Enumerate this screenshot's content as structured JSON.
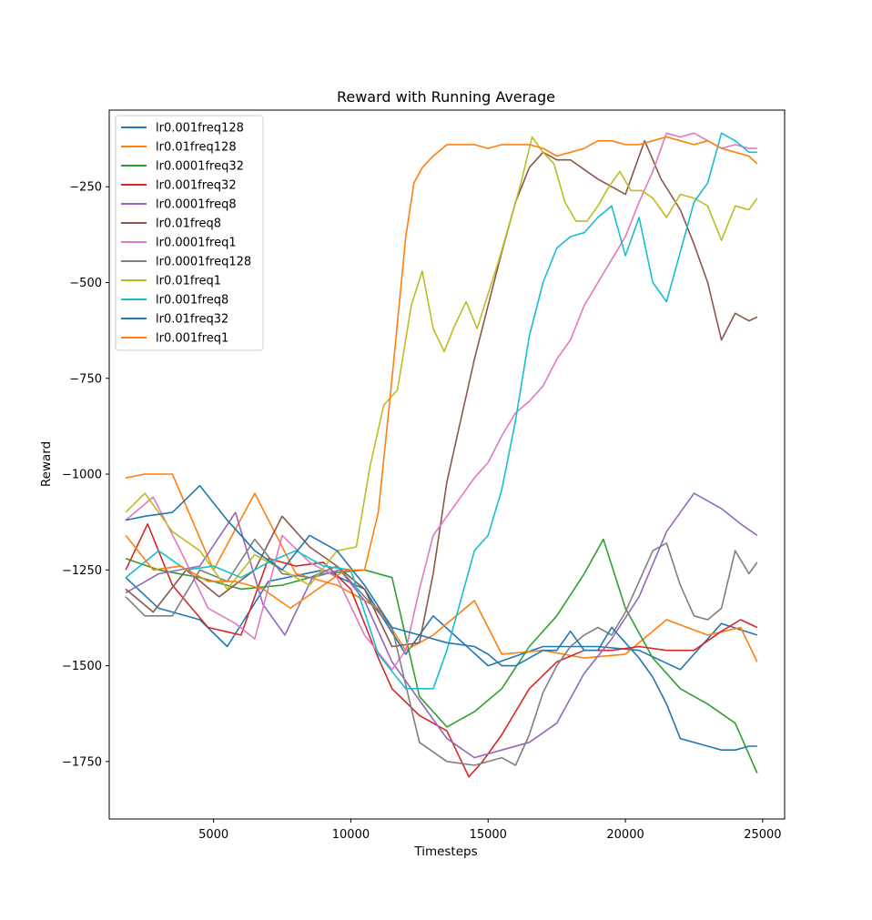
{
  "chart_data": {
    "type": "line",
    "title": "Reward with Running Average",
    "xlabel": "Timesteps",
    "ylabel": "Reward",
    "xlim": [
      1200,
      25800
    ],
    "ylim": [
      -1900,
      -50
    ],
    "xticks": [
      5000,
      10000,
      15000,
      20000,
      25000
    ],
    "xtick_labels": [
      "5000",
      "10000",
      "15000",
      "20000",
      "25000"
    ],
    "yticks": [
      -1750,
      -1500,
      -1250,
      -1000,
      -750,
      -500,
      -250
    ],
    "ytick_labels": [
      "−1750",
      "−1500",
      "−1250",
      "−1000",
      "−750",
      "−500",
      "−250"
    ],
    "grid": false,
    "legend_position": "upper-left",
    "series": [
      {
        "name": "lr0.001freq128",
        "color": "#1f77b4",
        "x": [
          1800,
          3000,
          4500,
          5500,
          7000,
          9000,
          10500,
          12000,
          13000,
          15000,
          17000,
          19000,
          20500,
          22000,
          23500,
          24800
        ],
        "y": [
          -1270,
          -1350,
          -1380,
          -1450,
          -1280,
          -1250,
          -1300,
          -1470,
          -1370,
          -1500,
          -1450,
          -1450,
          -1460,
          -1510,
          -1390,
          -1420
        ]
      },
      {
        "name": "lr0.01freq128",
        "color": "#ff7f0e",
        "x": [
          1800,
          2500,
          3500,
          5000,
          6500,
          8000,
          9500,
          11000,
          12000,
          13000,
          14500,
          15500,
          17000,
          18500,
          20000,
          21500,
          23000,
          24200,
          24800
        ],
        "y": [
          -1010,
          -1000,
          -1000,
          -1250,
          -1050,
          -1260,
          -1290,
          -1350,
          -1460,
          -1420,
          -1330,
          -1470,
          -1460,
          -1480,
          -1470,
          -1380,
          -1420,
          -1400,
          -1490
        ]
      },
      {
        "name": "lr0.0001freq32",
        "color": "#2ca02c",
        "x": [
          1800,
          3000,
          4500,
          6000,
          7500,
          9000,
          10500,
          11500,
          12500,
          13500,
          14500,
          15500,
          16500,
          17500,
          18500,
          19200,
          20000,
          21000,
          22000,
          23000,
          24000,
          24800
        ],
        "y": [
          -1220,
          -1250,
          -1270,
          -1300,
          -1290,
          -1260,
          -1250,
          -1270,
          -1580,
          -1660,
          -1620,
          -1560,
          -1450,
          -1370,
          -1260,
          -1170,
          -1350,
          -1480,
          -1560,
          -1600,
          -1650,
          -1780
        ]
      },
      {
        "name": "lr0.001freq32",
        "color": "#d62728",
        "x": [
          1800,
          2600,
          3500,
          4800,
          6000,
          7000,
          8000,
          9000,
          10000,
          11000,
          11500,
          12500,
          13500,
          14300,
          14800,
          15500,
          16500,
          17500,
          18500,
          19500,
          20500,
          21500,
          22500,
          23500,
          24200,
          24800
        ],
        "y": [
          -1250,
          -1130,
          -1290,
          -1400,
          -1420,
          -1220,
          -1240,
          -1230,
          -1300,
          -1480,
          -1560,
          -1630,
          -1670,
          -1790,
          -1750,
          -1680,
          -1560,
          -1490,
          -1460,
          -1460,
          -1450,
          -1460,
          -1460,
          -1410,
          -1380,
          -1400
        ]
      },
      {
        "name": "lr0.0001freq8",
        "color": "#9467bd",
        "x": [
          1800,
          3000,
          4500,
          5800,
          6800,
          7600,
          8600,
          9600,
          10500,
          11500,
          12500,
          13500,
          14500,
          15500,
          16500,
          17500,
          18500,
          19500,
          20500,
          21500,
          22500,
          23500,
          24200,
          24800
        ],
        "y": [
          -1310,
          -1260,
          -1240,
          -1100,
          -1340,
          -1420,
          -1270,
          -1250,
          -1330,
          -1490,
          -1590,
          -1690,
          -1740,
          -1720,
          -1700,
          -1650,
          -1520,
          -1430,
          -1320,
          -1150,
          -1050,
          -1090,
          -1130,
          -1160
        ]
      },
      {
        "name": "lr0.01freq8",
        "color": "#8c564b",
        "x": [
          1800,
          2800,
          4000,
          5200,
          6500,
          7500,
          8500,
          9500,
          10500,
          11500,
          12500,
          13000,
          13500,
          14000,
          14500,
          15000,
          15500,
          16000,
          16500,
          17000,
          17500,
          18000,
          19000,
          20000,
          20700,
          21300,
          22000,
          22500,
          23000,
          23500,
          24000,
          24500,
          24800
        ],
        "y": [
          -1300,
          -1360,
          -1250,
          -1320,
          -1250,
          -1110,
          -1190,
          -1240,
          -1300,
          -1450,
          -1440,
          -1260,
          -1020,
          -860,
          -700,
          -560,
          -420,
          -290,
          -200,
          -160,
          -180,
          -180,
          -230,
          -270,
          -130,
          -230,
          -310,
          -400,
          -500,
          -650,
          -580,
          -600,
          -590
        ]
      },
      {
        "name": "lr0.0001freq1",
        "color": "#e377c2",
        "x": [
          1800,
          2800,
          3800,
          4800,
          5800,
          6500,
          7500,
          8500,
          9500,
          10500,
          11500,
          12000,
          12500,
          13000,
          13500,
          14000,
          14500,
          15000,
          15500,
          16000,
          16500,
          17000,
          17500,
          18000,
          18500,
          19000,
          19500,
          20000,
          20500,
          21000,
          21500,
          22000,
          22500,
          23000,
          23500,
          24000,
          24500,
          24800
        ],
        "y": [
          -1120,
          -1060,
          -1200,
          -1350,
          -1390,
          -1430,
          -1160,
          -1230,
          -1270,
          -1420,
          -1510,
          -1460,
          -1300,
          -1160,
          -1110,
          -1060,
          -1010,
          -970,
          -900,
          -840,
          -810,
          -770,
          -700,
          -650,
          -560,
          -500,
          -440,
          -380,
          -290,
          -210,
          -110,
          -120,
          -110,
          -130,
          -150,
          -140,
          -150,
          -150
        ]
      },
      {
        "name": "lr0.0001freq128",
        "color": "#7f7f7f",
        "x": [
          1800,
          2500,
          3500,
          4500,
          5500,
          6500,
          7500,
          8500,
          9500,
          10500,
          11500,
          12500,
          13500,
          14500,
          15500,
          16000,
          16500,
          17000,
          17500,
          18000,
          18500,
          19000,
          19500,
          20000,
          20500,
          21000,
          21500,
          22000,
          22500,
          23000,
          23500,
          24000,
          24500,
          24800
        ],
        "y": [
          -1320,
          -1370,
          -1370,
          -1250,
          -1280,
          -1170,
          -1260,
          -1270,
          -1240,
          -1320,
          -1400,
          -1700,
          -1750,
          -1760,
          -1740,
          -1760,
          -1680,
          -1570,
          -1500,
          -1450,
          -1420,
          -1400,
          -1420,
          -1360,
          -1280,
          -1200,
          -1180,
          -1290,
          -1370,
          -1380,
          -1350,
          -1200,
          -1260,
          -1230
        ]
      },
      {
        "name": "lr0.01freq1",
        "color": "#bcbd22",
        "x": [
          1800,
          2500,
          3500,
          4500,
          5500,
          6500,
          7500,
          8500,
          9500,
          10200,
          10700,
          11200,
          11700,
          12200,
          12600,
          13000,
          13400,
          13800,
          14200,
          14600,
          15000,
          15400,
          15800,
          16200,
          16600,
          17000,
          17400,
          17800,
          18200,
          18600,
          19000,
          19400,
          19800,
          20200,
          20600,
          21000,
          21500,
          22000,
          22500,
          23000,
          23500,
          24000,
          24500,
          24800
        ],
        "y": [
          -1100,
          -1050,
          -1150,
          -1200,
          -1300,
          -1210,
          -1250,
          -1290,
          -1200,
          -1190,
          -980,
          -820,
          -780,
          -560,
          -470,
          -620,
          -680,
          -610,
          -550,
          -620,
          -530,
          -440,
          -340,
          -240,
          -120,
          -160,
          -190,
          -290,
          -340,
          -340,
          -300,
          -250,
          -210,
          -260,
          -260,
          -280,
          -330,
          -270,
          -280,
          -300,
          -390,
          -300,
          -310,
          -280
        ]
      },
      {
        "name": "lr0.001freq8",
        "color": "#17becf",
        "x": [
          1800,
          3000,
          4000,
          5000,
          6000,
          7000,
          8000,
          9000,
          10000,
          11000,
          12000,
          13000,
          13500,
          14000,
          14500,
          15000,
          15500,
          16000,
          16500,
          17000,
          17500,
          18000,
          18500,
          19000,
          19500,
          20000,
          20500,
          21000,
          21500,
          22000,
          22500,
          23000,
          23500,
          24000,
          24500,
          24800
        ],
        "y": [
          -1270,
          -1200,
          -1250,
          -1240,
          -1270,
          -1230,
          -1200,
          -1240,
          -1250,
          -1470,
          -1560,
          -1560,
          -1460,
          -1330,
          -1200,
          -1160,
          -1040,
          -860,
          -640,
          -500,
          -410,
          -380,
          -370,
          -330,
          -300,
          -430,
          -330,
          -500,
          -550,
          -420,
          -290,
          -240,
          -110,
          -130,
          -160,
          -160
        ]
      },
      {
        "name": "lr0.01freq32",
        "color": "#1f77b4",
        "x": [
          1800,
          2500,
          3500,
          4500,
          5500,
          6500,
          7500,
          8500,
          9500,
          10500,
          11500,
          12500,
          13500,
          14500,
          15000,
          15500,
          16000,
          17000,
          17500,
          18000,
          18500,
          19000,
          19500,
          20000,
          20500,
          21000,
          21500,
          22000,
          22500,
          23000,
          23500,
          24000,
          24500,
          24800
        ],
        "y": [
          -1120,
          -1110,
          -1100,
          -1030,
          -1120,
          -1200,
          -1250,
          -1160,
          -1200,
          -1290,
          -1400,
          -1420,
          -1440,
          -1450,
          -1470,
          -1500,
          -1500,
          -1460,
          -1460,
          -1410,
          -1460,
          -1460,
          -1400,
          -1440,
          -1480,
          -1530,
          -1600,
          -1690,
          -1700,
          -1710,
          -1720,
          -1720,
          -1710,
          -1710
        ]
      },
      {
        "name": "lr0.001freq1",
        "color": "#ff7f0e",
        "x": [
          1800,
          2800,
          3800,
          4800,
          5800,
          6800,
          7800,
          8800,
          9800,
          10500,
          11000,
          11500,
          12000,
          12300,
          12600,
          13000,
          13500,
          14000,
          14500,
          15000,
          15500,
          16000,
          16500,
          17000,
          17500,
          18000,
          18500,
          19000,
          19500,
          20000,
          20500,
          21000,
          21500,
          22000,
          22500,
          23000,
          23500,
          24000,
          24500,
          24800
        ],
        "y": [
          -1160,
          -1250,
          -1240,
          -1280,
          -1280,
          -1300,
          -1350,
          -1300,
          -1250,
          -1250,
          -1100,
          -750,
          -380,
          -240,
          -200,
          -170,
          -140,
          -140,
          -140,
          -150,
          -140,
          -140,
          -140,
          -150,
          -170,
          -160,
          -150,
          -130,
          -130,
          -140,
          -140,
          -130,
          -120,
          -130,
          -140,
          -130,
          -150,
          -160,
          -170,
          -190
        ]
      }
    ]
  }
}
